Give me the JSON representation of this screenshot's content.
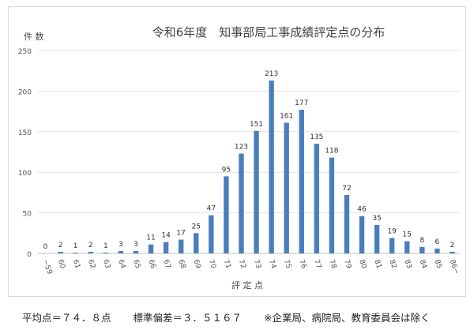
{
  "chart_data": {
    "type": "bar",
    "title": "令和6年度　知事部局工事成績評定点の分布",
    "xlabel": "評 定 点",
    "ylabel": "件 数",
    "ylim": [
      0,
      250
    ],
    "yticks": [
      0,
      50,
      100,
      150,
      200,
      250
    ],
    "grid": true,
    "bar_color": "#4a7ebb",
    "categories": [
      "~59",
      "60",
      "61",
      "62",
      "63",
      "64",
      "65",
      "66",
      "67",
      "68",
      "69",
      "70",
      "71",
      "72",
      "73",
      "74",
      "75",
      "76",
      "77",
      "78",
      "79",
      "80",
      "81",
      "82",
      "83",
      "84",
      "85",
      "86~"
    ],
    "values": [
      0,
      2,
      1,
      2,
      1,
      3,
      3,
      11,
      14,
      17,
      25,
      47,
      95,
      123,
      151,
      213,
      161,
      177,
      135,
      118,
      72,
      46,
      35,
      19,
      15,
      8,
      6,
      2
    ]
  },
  "footer": {
    "mean": "平均点＝７４．８点",
    "stdev": "標準偏差＝３．５１６７",
    "note": "※企業局、病院局、教育委員会は除く"
  }
}
